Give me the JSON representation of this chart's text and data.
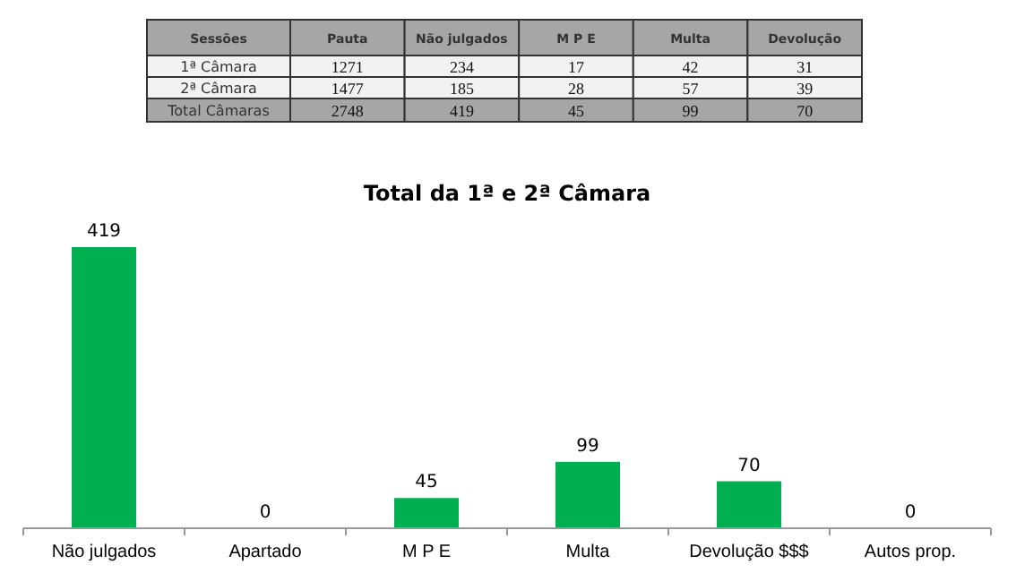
{
  "chart_data": [
    {
      "type": "heatmap",
      "ylabel": "Sessões",
      "categories": [
        "Pauta",
        "Não julgados",
        "M P E",
        "Multa",
        "Devolução"
      ],
      "y_categories": [
        "1ª Câmara",
        "2ª Câmara",
        "Total Câmaras"
      ],
      "cells": [
        [
          1271,
          234,
          17,
          42,
          31
        ],
        [
          1477,
          185,
          28,
          57,
          39
        ],
        [
          2748,
          419,
          45,
          99,
          70
        ]
      ],
      "data_labels": true
    },
    {
      "type": "bar",
      "title": "Total da 1ª e 2ª Câmara",
      "categories": [
        "Não julgados",
        "Apartado",
        "M P E",
        "Multa",
        "Devolução $$$",
        "Autos prop."
      ],
      "values": [
        419,
        0,
        45,
        99,
        70,
        0
      ],
      "color": "#00b050",
      "data_labels": true
    }
  ]
}
